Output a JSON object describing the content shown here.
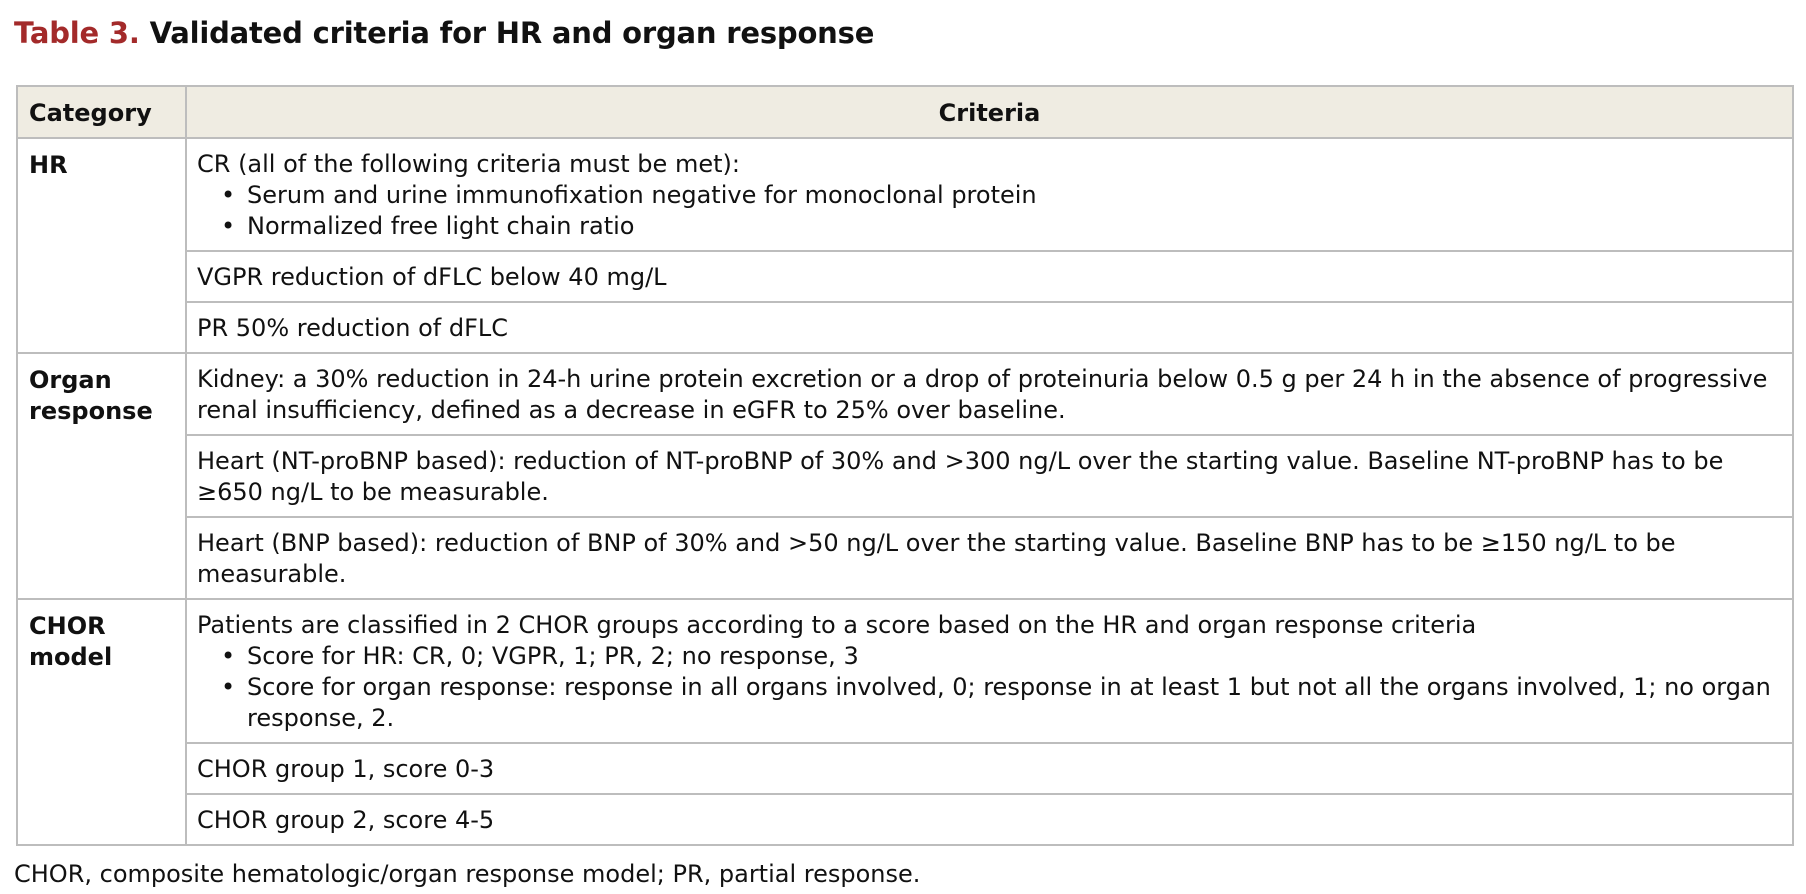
{
  "title": {
    "label": "Table 3.",
    "text": "Validated criteria for HR and organ response"
  },
  "table": {
    "headers": {
      "category": "Category",
      "criteria": "Criteria"
    },
    "groups": [
      {
        "category": "HR",
        "rows": [
          {
            "text": "CR (all of the following criteria must be met):",
            "bullets": [
              "Serum and urine immunofixation negative for monoclonal protein",
              "Normalized free light chain ratio"
            ]
          },
          {
            "text": "VGPR reduction of dFLC below 40 mg/L"
          },
          {
            "text": "PR 50% reduction of dFLC"
          }
        ]
      },
      {
        "category": "Organ response",
        "rows": [
          {
            "text": "Kidney: a 30% reduction in 24-h urine protein excretion or a drop of proteinuria below 0.5 g per 24 h in the absence of progressive renal insufficiency, defined as a decrease in eGFR to 25% over baseline."
          },
          {
            "text": "Heart (NT-proBNP based): reduction of NT-proBNP of 30% and >300 ng/L over the starting value. Baseline NT-proBNP has to be ≥650 ng/L to be measurable."
          },
          {
            "text": "Heart (BNP based): reduction of BNP of 30% and >50 ng/L over the starting value. Baseline BNP has to be ≥150 ng/L to be measurable."
          }
        ]
      },
      {
        "category": "CHOR model",
        "rows": [
          {
            "text": "Patients are classified in 2 CHOR groups according to a score based on the HR and organ response criteria",
            "bullets": [
              "Score for HR: CR, 0; VGPR, 1; PR, 2; no response, 3",
              "Score for organ response: response in all organs involved, 0; response in at least 1 but not all the organs involved, 1; no organ response, 2."
            ]
          },
          {
            "text": "CHOR group 1, score 0-3"
          },
          {
            "text": "CHOR group 2, score 4-5"
          }
        ]
      }
    ]
  },
  "footnote": "CHOR, composite hematologic/organ response model; PR, partial response.",
  "colors": {
    "title_label": "#a32a2a",
    "header_background": "#efece2",
    "border": "#bdbdbd"
  }
}
